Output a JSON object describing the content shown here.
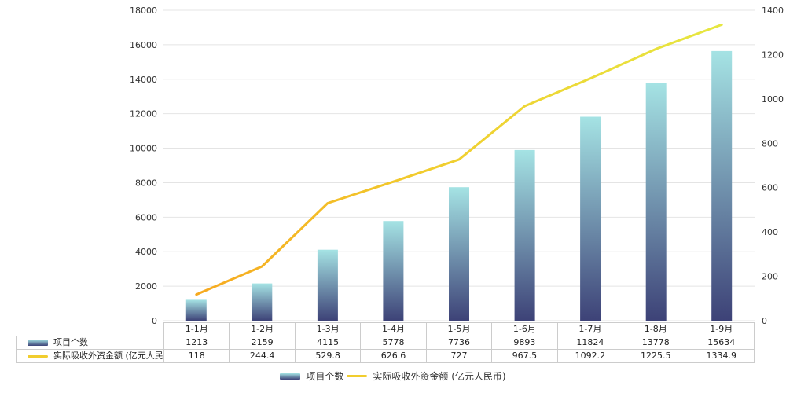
{
  "chart_data": {
    "type": "bar",
    "combo": "bar+line",
    "title": "",
    "categories": [
      "1-1月",
      "1-2月",
      "1-3月",
      "1-4月",
      "1-5月",
      "1-6月",
      "1-7月",
      "1-8月",
      "1-9月"
    ],
    "series": [
      {
        "name": "项目个数",
        "type": "bar",
        "yaxis": "left",
        "values": [
          1213,
          2159,
          4115,
          5778,
          7736,
          9893,
          11824,
          13778,
          15634
        ]
      },
      {
        "name": "实际吸收外资金额 (亿元人民币)",
        "type": "line",
        "yaxis": "right",
        "values": [
          118,
          244.4,
          529.8,
          626.6,
          727,
          967.5,
          1092.2,
          1225.5,
          1334.9
        ]
      }
    ],
    "left_axis": {
      "min": 0,
      "max": 18000,
      "step": 2000
    },
    "right_axis": {
      "min": 0,
      "max": 1400,
      "step": 200
    },
    "grid": true,
    "legend_position": "bottom",
    "table_shown": true
  },
  "colors": {
    "bar_top": "#a5e3e4",
    "bar_bottom": "#3d4277",
    "line_start": "#f7a41d",
    "line_mid": "#f1cd2e",
    "line_end": "#e5ea43",
    "legend_line": "#f1cd2e",
    "grid": "#e4e4e4",
    "table_border": "#cccccc",
    "text": "#333333"
  },
  "legend": {
    "items": [
      {
        "label": "项目个数",
        "swatch": "bar"
      },
      {
        "label": "实际吸收外资金额 (亿元人民币)",
        "swatch": "line"
      }
    ]
  }
}
